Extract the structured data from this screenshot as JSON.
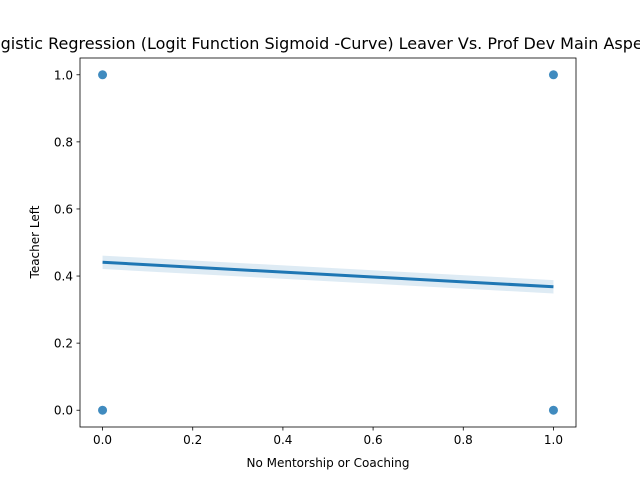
{
  "chart_data": {
    "type": "scatter",
    "title": "Logistic Regression (Logit Function Sigmoid -Curve) Leaver Vs. Prof Dev Main Aspect",
    "xlabel": "No Mentorship or Coaching",
    "ylabel": "Teacher Left",
    "xlim": [
      -0.05,
      1.05
    ],
    "ylim": [
      -0.05,
      1.05
    ],
    "xticks": [
      0.0,
      0.2,
      0.4,
      0.6,
      0.8,
      1.0
    ],
    "xtick_labels": [
      "0.0",
      "0.2",
      "0.4",
      "0.6",
      "0.8",
      "1.0"
    ],
    "yticks": [
      0.0,
      0.2,
      0.4,
      0.6,
      0.8,
      1.0
    ],
    "ytick_labels": [
      "0.0",
      "0.2",
      "0.4",
      "0.6",
      "0.8",
      "1.0"
    ],
    "grid": false,
    "points": {
      "x": [
        0,
        0,
        1,
        1
      ],
      "y": [
        0,
        1,
        0,
        1
      ]
    },
    "fit": {
      "x": [
        0.0,
        1.0
      ],
      "y": [
        0.441,
        0.368
      ],
      "ci_lower": [
        0.421,
        0.348
      ],
      "ci_upper": [
        0.461,
        0.388
      ]
    },
    "colors": {
      "points": "#1f77b4",
      "line": "#1f77b4",
      "band": "#1f77b4"
    }
  }
}
